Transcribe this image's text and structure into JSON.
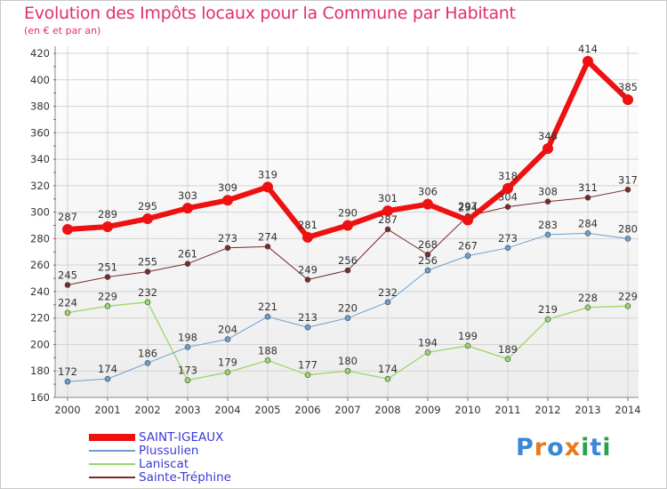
{
  "title": "Evolution des Impôts locaux pour la Commune par Habitant",
  "subtitle": "(en € et par an)",
  "logo": {
    "letters": [
      "P",
      "r",
      "o",
      "x",
      "i",
      "t",
      "i"
    ],
    "colors": [
      "#3a87d6",
      "#e8791c",
      "#3a87d6",
      "#e8791c",
      "#2ea04b",
      "#3a87d6",
      "#2ea04b"
    ]
  },
  "chart_data": {
    "type": "line",
    "x": [
      "2000",
      "2001",
      "2002",
      "2003",
      "2004",
      "2005",
      "2006",
      "2007",
      "2008",
      "2009",
      "2010",
      "2011",
      "2012",
      "2013",
      "2014"
    ],
    "ylim": [
      160,
      420
    ],
    "yticks": [
      "160",
      "180",
      "200",
      "220",
      "240",
      "260",
      "280",
      "300",
      "320",
      "340",
      "360",
      "380",
      "400",
      "420"
    ],
    "grid": true,
    "legend_position": "bottom-left",
    "series": [
      {
        "name": "Sainte-Tréphine",
        "color": "#7a2b2b",
        "width": 1,
        "values": [
          245,
          251,
          255,
          261,
          273,
          274,
          249,
          256,
          287,
          268,
          297,
          304,
          308,
          311,
          317
        ],
        "labels": [
          "245",
          "251",
          "255",
          "261",
          "273",
          "274",
          "249",
          "256",
          "287",
          "268",
          "297",
          "304",
          "308",
          "311",
          "317"
        ]
      },
      {
        "name": "Laniscat",
        "color": "#99d76a",
        "width": 1.3,
        "values": [
          224,
          229,
          232,
          173,
          179,
          188,
          177,
          180,
          174,
          194,
          199,
          189,
          219,
          228,
          229
        ],
        "labels": [
          "224",
          "229",
          "232",
          "173",
          "179",
          "188",
          "177",
          "180",
          "174",
          "194",
          "199",
          "189",
          "219",
          "228",
          "229"
        ]
      },
      {
        "name": "Plussulien",
        "color": "#6a9fd0",
        "width": 1,
        "values": [
          172,
          174,
          186,
          198,
          204,
          221,
          213,
          220,
          232,
          256,
          267,
          273,
          283,
          284,
          280
        ],
        "labels": [
          "172",
          "174",
          "186",
          "198",
          "204",
          "221",
          "213",
          "220",
          "232",
          "256",
          "267",
          "273",
          "283",
          "284",
          "280"
        ]
      },
      {
        "name": "SAINT-IGEAUX",
        "color": "#ee1111",
        "width": 6,
        "values": [
          287,
          289,
          295,
          303,
          309,
          319,
          281,
          290,
          301,
          306,
          294,
          318,
          348,
          414,
          385
        ],
        "labels": [
          "287",
          "289",
          "295",
          "303",
          "309",
          "319",
          "281",
          "290",
          "301",
          "306",
          "294",
          "318",
          "348",
          "414",
          "385"
        ]
      }
    ],
    "legend": [
      {
        "name": "SAINT-IGEAUX",
        "color": "#ee1111",
        "label_color": "#3a3ad8"
      },
      {
        "name": "Plussulien",
        "color": "#6a9fd0",
        "label_color": "#3a3ad8"
      },
      {
        "name": "Laniscat",
        "color": "#99d76a",
        "label_color": "#3a3ad8"
      },
      {
        "name": "Sainte-Tréphine",
        "color": "#7a2b2b",
        "label_color": "#3a3ad8"
      }
    ]
  }
}
